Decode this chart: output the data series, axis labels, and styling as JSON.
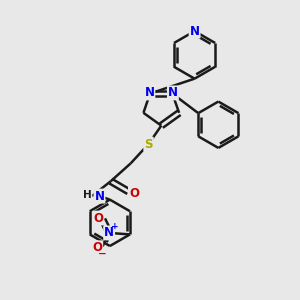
{
  "bg_color": "#e8e8e8",
  "bond_color": "#1a1a1a",
  "n_color": "#0000ee",
  "o_color": "#cc0000",
  "s_color": "#aaaa00",
  "line_width": 1.8,
  "font_size_atom": 8.5,
  "fig_width": 3.0,
  "fig_height": 3.0,
  "dpi": 100,
  "xlim": [
    0,
    10
  ],
  "ylim": [
    0,
    10
  ]
}
